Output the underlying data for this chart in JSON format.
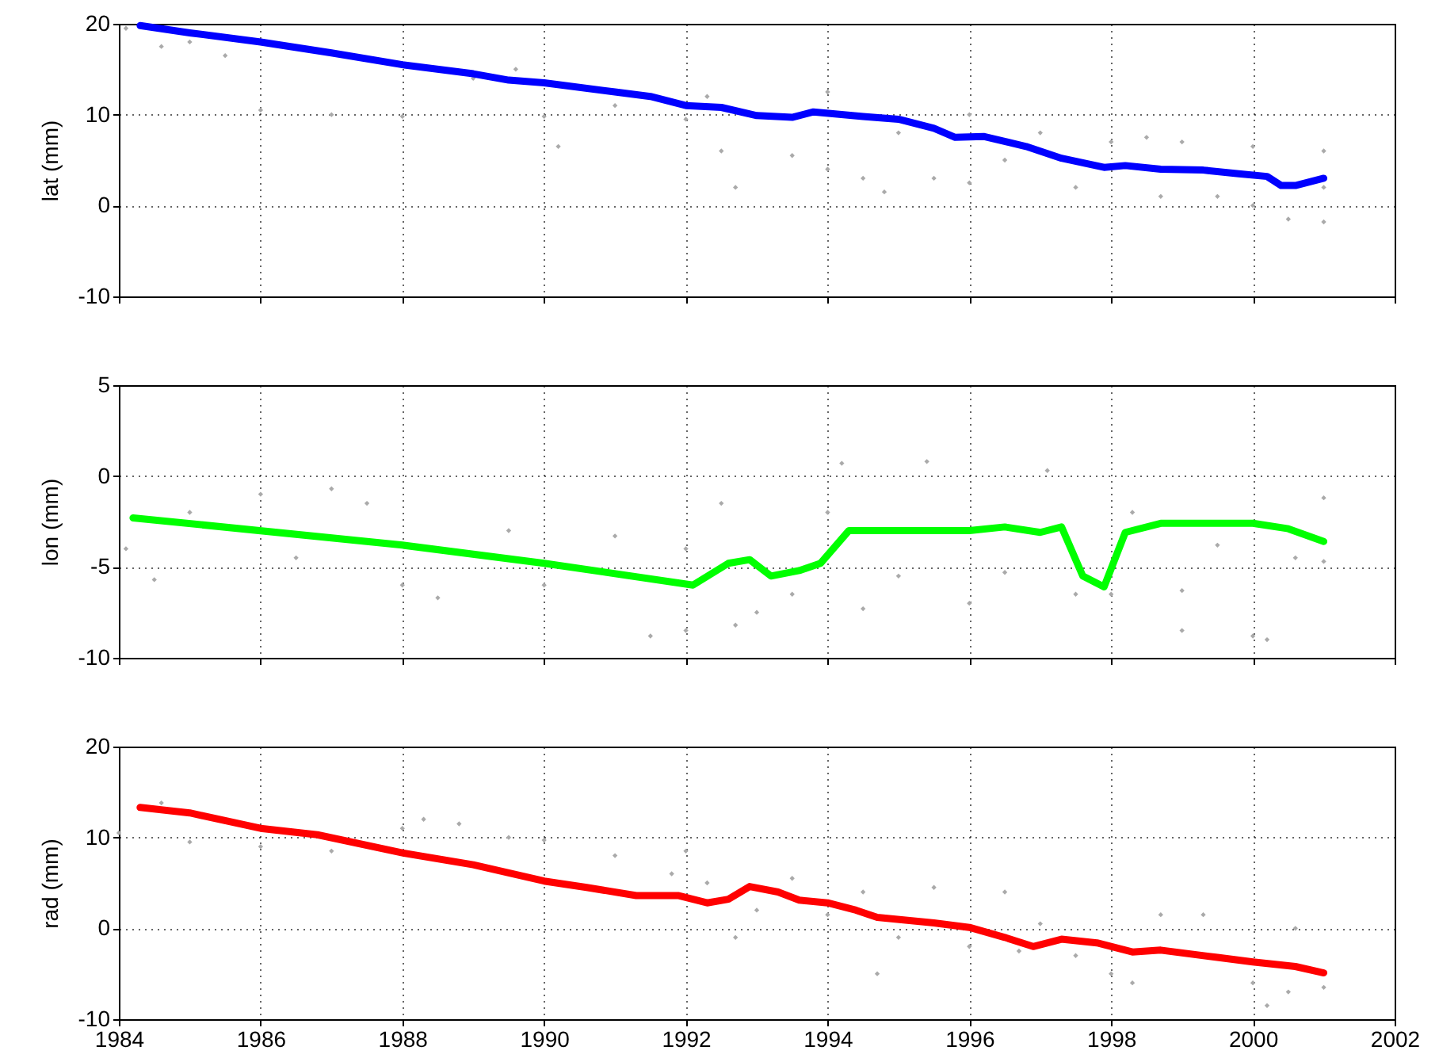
{
  "chart_data": [
    {
      "type": "line",
      "ylabel": "lat (mm)",
      "xlim": [
        1984,
        2002
      ],
      "xticks": [
        1984,
        1986,
        1988,
        1990,
        1992,
        1994,
        1996,
        1998,
        2000,
        2002
      ],
      "ylim": [
        -10,
        20
      ],
      "yticks": [
        -10,
        0,
        10,
        20
      ],
      "grid": true,
      "tick_labels": "y",
      "series": [
        {
          "type": "scatter",
          "color": "#aaaaaa",
          "x": [
            1984.1,
            1984.6,
            1985,
            1985.5,
            1986,
            1987,
            1988,
            1989,
            1989.6,
            1990,
            1990.2,
            1991,
            1992,
            1992.3,
            1992.5,
            1992.7,
            1993.5,
            1994,
            1994,
            1994.5,
            1994.8,
            1995,
            1995.5,
            1996,
            1996,
            1996.5,
            1997,
            1997.5,
            1998,
            1998.5,
            1998.7,
            1999,
            1999.5,
            2000,
            2000,
            2000.5,
            2001,
            2001,
            2001
          ],
          "values": [
            19.5,
            17.5,
            18,
            16.5,
            10.5,
            10,
            9.8,
            14,
            15,
            9.8,
            6.5,
            11,
            9.5,
            12,
            6,
            2,
            5.5,
            12.5,
            4,
            3,
            1.5,
            8,
            3,
            10,
            2.5,
            5,
            8,
            2,
            7,
            7.5,
            1,
            7,
            1,
            6.5,
            0,
            -1.5,
            6,
            -1.8,
            2
          ]
        },
        {
          "type": "line",
          "color": "#0000ff",
          "x": [
            1984.3,
            1985,
            1986,
            1987,
            1988,
            1989,
            1989.5,
            1990,
            1991,
            1991.5,
            1992,
            1992.5,
            1993,
            1993.5,
            1993.8,
            1994.5,
            1995,
            1995.5,
            1995.8,
            1996.2,
            1996.8,
            1997.3,
            1997.9,
            1998.2,
            1998.7,
            1999.3,
            1999.8,
            2000.2,
            2000.4,
            2000.6,
            2001
          ],
          "values": [
            19.8,
            19,
            18,
            16.8,
            15.5,
            14.5,
            13.8,
            13.5,
            12.5,
            12,
            11,
            10.8,
            9.9,
            9.7,
            10.3,
            9.8,
            9.5,
            8.5,
            7.5,
            7.6,
            6.5,
            5.2,
            4.2,
            4.4,
            4,
            3.9,
            3.5,
            3.2,
            2.2,
            2.2,
            3
          ]
        }
      ]
    },
    {
      "type": "line",
      "ylabel": "lon (mm)",
      "xlim": [
        1984,
        2002
      ],
      "xticks": [
        1984,
        1986,
        1988,
        1990,
        1992,
        1994,
        1996,
        1998,
        2000,
        2002
      ],
      "ylim": [
        -10,
        5
      ],
      "yticks": [
        -10,
        -5,
        0,
        5
      ],
      "grid": true,
      "tick_labels": "y",
      "series": [
        {
          "type": "scatter",
          "color": "#aaaaaa",
          "x": [
            1984.1,
            1984.5,
            1985,
            1986,
            1986.5,
            1987,
            1987.5,
            1988,
            1988.5,
            1989.5,
            1990,
            1991,
            1991.5,
            1992,
            1992,
            1992.5,
            1992.7,
            1993,
            1993.5,
            1994,
            1994.2,
            1994.5,
            1995,
            1995.4,
            1996,
            1996.5,
            1997.1,
            1997.5,
            1998,
            1998.3,
            1999,
            1999,
            1999.5,
            2000,
            2000.2,
            2000.6,
            2001,
            2001
          ],
          "values": [
            -4,
            -5.7,
            -2,
            -1,
            -4.5,
            -0.7,
            -1.5,
            -6,
            -6.7,
            -3,
            -6,
            -3.3,
            -8.8,
            -8.5,
            -4,
            -1.5,
            -8.2,
            -7.5,
            -6.5,
            -2,
            0.7,
            -7.3,
            -5.5,
            0.8,
            -7,
            -5.3,
            0.3,
            -6.5,
            -6.5,
            -2,
            -8.5,
            -6.3,
            -3.8,
            -8.8,
            -9,
            -4.5,
            -1.2,
            -4.7
          ]
        },
        {
          "type": "line",
          "color": "#00ff00",
          "x": [
            1984.2,
            1988,
            1990,
            1992.1,
            1992.6,
            1992.9,
            1993.2,
            1993.6,
            1993.9,
            1994.3,
            1995,
            1996,
            1996.5,
            1997,
            1997.3,
            1997.6,
            1997.9,
            1998.2,
            1998.7,
            1999.5,
            2000,
            2000.5,
            2001
          ],
          "values": [
            -2.3,
            -3.8,
            -4.8,
            -6,
            -4.8,
            -4.6,
            -5.5,
            -5.2,
            -4.8,
            -3,
            -3,
            -3,
            -2.8,
            -3.1,
            -2.8,
            -5.5,
            -6.1,
            -3.1,
            -2.6,
            -2.6,
            -2.6,
            -2.9,
            -3.6
          ]
        }
      ]
    },
    {
      "type": "line",
      "ylabel": "rad (mm)",
      "xlim": [
        1984,
        2002
      ],
      "xticks": [
        1984,
        1986,
        1988,
        1990,
        1992,
        1994,
        1996,
        1998,
        2000,
        2002
      ],
      "ylim": [
        -10,
        20
      ],
      "yticks": [
        -10,
        0,
        10,
        20
      ],
      "grid": true,
      "series": [
        {
          "type": "scatter",
          "color": "#aaaaaa",
          "x": [
            1984,
            1984.6,
            1985,
            1986,
            1987,
            1988,
            1988.3,
            1988.8,
            1989.5,
            1990,
            1991,
            1991.8,
            1992,
            1992.3,
            1992.7,
            1993,
            1993.5,
            1994,
            1994.5,
            1994.7,
            1995,
            1995.5,
            1996,
            1996.5,
            1996.7,
            1997,
            1997.5,
            1998,
            1998.3,
            1998.7,
            1999.3,
            2000,
            2000.2,
            2000.5,
            2001,
            2000.6
          ],
          "values": [
            10.5,
            13.8,
            9.5,
            9,
            8.5,
            11,
            12,
            11.5,
            10,
            9.7,
            8,
            6,
            8.5,
            5,
            -1,
            2,
            5.5,
            1.5,
            4,
            -5,
            -1,
            4.5,
            -2,
            4,
            -2.5,
            0.5,
            -3,
            -5,
            -6,
            1.5,
            1.5,
            -6,
            -8.5,
            -7,
            -6.5,
            0
          ]
        },
        {
          "type": "line",
          "color": "#ff0000",
          "x": [
            1984.3,
            1985,
            1986,
            1986.8,
            1988,
            1989,
            1990,
            1990.6,
            1991.3,
            1991.9,
            1992.3,
            1992.6,
            1992.9,
            1993.3,
            1993.6,
            1994,
            1994.4,
            1994.7,
            1995.5,
            1996,
            1996.5,
            1996.9,
            1997.3,
            1997.8,
            1998.3,
            1998.7,
            1999.5,
            2000,
            2000.6,
            2001
          ],
          "values": [
            13.3,
            12.7,
            11,
            10.3,
            8.3,
            7,
            5.2,
            4.5,
            3.6,
            3.6,
            2.8,
            3.2,
            4.6,
            4,
            3.1,
            2.8,
            2,
            1.2,
            0.6,
            0.1,
            -1,
            -2,
            -1.2,
            -1.6,
            -2.6,
            -2.4,
            -3.2,
            -3.7,
            -4.2,
            -4.9
          ]
        }
      ]
    }
  ]
}
